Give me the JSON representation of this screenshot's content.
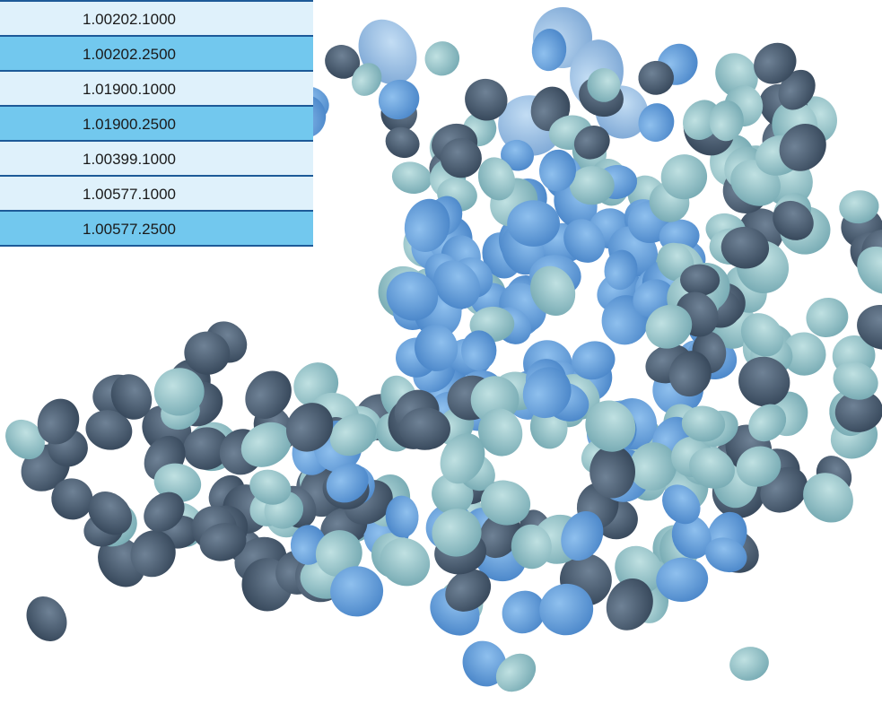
{
  "table": {
    "rows": [
      "1.00202.1000",
      "1.00202.2500",
      "1.01900.1000",
      "1.01900.2500",
      "1.00399.1000",
      "1.00577.1000",
      "1.00577.2500"
    ]
  },
  "image": {
    "subject": "pile-of-tablets-icon",
    "palette": [
      "#5a9bd8",
      "#84b4e2",
      "#7fb3bb",
      "#a9cfd2",
      "#4c5f73",
      "#3a4c5e"
    ]
  }
}
